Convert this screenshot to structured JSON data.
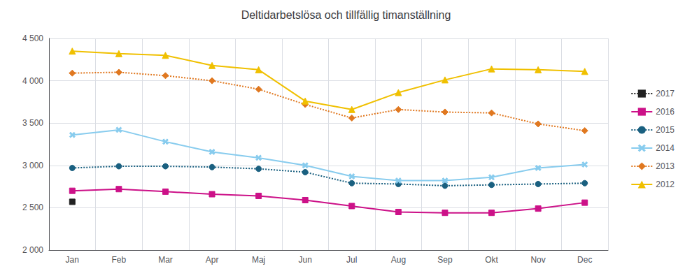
{
  "chart_data": {
    "type": "line",
    "title": "Deltidarbetslösa och tillfällig timanställning",
    "categories": [
      "Jan",
      "Feb",
      "Mar",
      "Apr",
      "Maj",
      "Jun",
      "Jul",
      "Aug",
      "Sep",
      "Okt",
      "Nov",
      "Dec"
    ],
    "series": [
      {
        "name": "2017",
        "color": "#222222",
        "line_style": "dotted",
        "marker": "square",
        "values": [
          2570,
          null,
          null,
          null,
          null,
          null,
          null,
          null,
          null,
          null,
          null,
          null
        ]
      },
      {
        "name": "2016",
        "color": "#cc1188",
        "line_style": "solid",
        "marker": "square",
        "values": [
          2700,
          2720,
          2690,
          2660,
          2640,
          2590,
          2520,
          2450,
          2440,
          2440,
          2490,
          2560
        ]
      },
      {
        "name": "2015",
        "color": "#1a6080",
        "line_style": "dotted",
        "marker": "circle",
        "values": [
          2970,
          2990,
          2990,
          2980,
          2960,
          2920,
          2790,
          2780,
          2760,
          2770,
          2780,
          2790
        ]
      },
      {
        "name": "2014",
        "color": "#88ccee",
        "line_style": "solid",
        "marker": "x",
        "values": [
          3360,
          3420,
          3280,
          3160,
          3090,
          3000,
          2870,
          2820,
          2820,
          2860,
          2970,
          3010
        ]
      },
      {
        "name": "2013",
        "color": "#e07820",
        "line_style": "dotted",
        "marker": "diamond",
        "values": [
          4090,
          4100,
          4060,
          4000,
          3900,
          3720,
          3560,
          3660,
          3630,
          3620,
          3490,
          3410
        ]
      },
      {
        "name": "2012",
        "color": "#f0c000",
        "line_style": "solid",
        "marker": "triangle",
        "values": [
          4350,
          4320,
          4300,
          4180,
          4130,
          3760,
          3660,
          3860,
          4010,
          4140,
          4130,
          4110
        ]
      }
    ],
    "ylim": [
      2000,
      4500
    ],
    "yticks": [
      {
        "value": 2000,
        "label": "2 000"
      },
      {
        "value": 2500,
        "label": "2 500"
      },
      {
        "value": 3000,
        "label": "3 000"
      },
      {
        "value": 3500,
        "label": "3 500"
      },
      {
        "value": 4000,
        "label": "4 000"
      },
      {
        "value": 4500,
        "label": "4 500"
      }
    ],
    "grid": true,
    "legend": "right"
  }
}
